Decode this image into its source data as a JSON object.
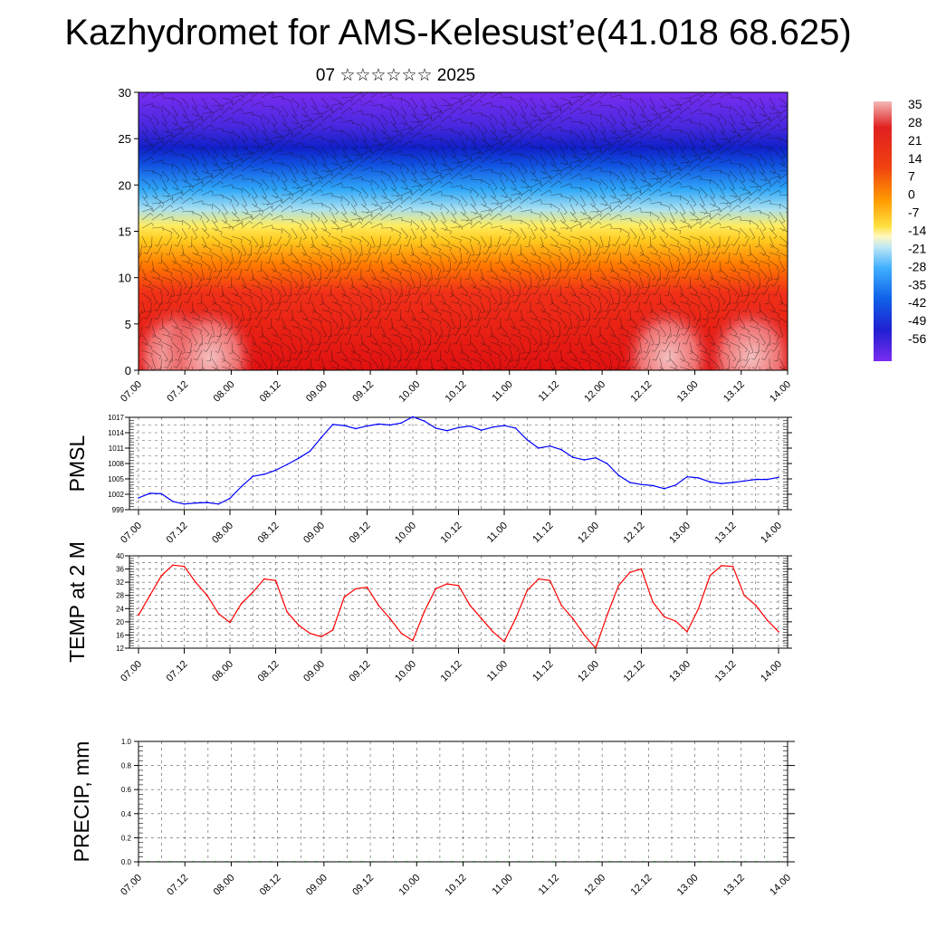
{
  "title": "Kazhydromet for AMS-Kelesust’e(41.018 68.625)",
  "subtitle": "07 ☆☆☆☆☆☆ 2025",
  "chart_data": [
    {
      "type": "heatmap",
      "name": "temperature-cross-section",
      "x_tick_labels": [
        "07.00",
        "07.12",
        "08.00",
        "08.12",
        "09.00",
        "09.12",
        "10.00",
        "10.12",
        "11.00",
        "11.12",
        "12.00",
        "12.12",
        "13.00",
        "13.12",
        "14.00"
      ],
      "y_ticks": [
        0,
        5,
        10,
        15,
        20,
        25,
        30
      ],
      "ylim": [
        0,
        30
      ],
      "colorbar_labels": [
        "35",
        "28",
        "21",
        "14",
        "7",
        "0",
        "-7",
        "-14",
        "-21",
        "-28",
        "-35",
        "-42",
        "-49",
        "-56"
      ],
      "colors": {
        "warm": "#e01010",
        "hot_core": "#f0a0a0",
        "mid": "#ff9a00",
        "neutral": "#ffe040",
        "cool": "#40b0ff",
        "cold": "#1020d0",
        "coldest": "#7a2cf0"
      },
      "overlay": "wind barbs"
    },
    {
      "type": "line",
      "name": "pmsl",
      "ylabel": "PMSL",
      "x_tick_labels": [
        "07.00",
        "07.12",
        "08.00",
        "08.12",
        "09.00",
        "09.12",
        "10.00",
        "10.12",
        "11.00",
        "11.12",
        "12.00",
        "12.12",
        "13.00",
        "13.12",
        "14.00"
      ],
      "y_ticks": [
        999,
        1002,
        1005,
        1008,
        1011,
        1014,
        1017
      ],
      "ylim": [
        999,
        1017
      ],
      "grid": true,
      "color": "#0000ff",
      "x": [
        0,
        3,
        6,
        9,
        12,
        15,
        18,
        21,
        24,
        27,
        30,
        33,
        36,
        39,
        42,
        45,
        48,
        51,
        54,
        57,
        60,
        63,
        66,
        69,
        72,
        75,
        78,
        81,
        84,
        87,
        90,
        93,
        96,
        99,
        102,
        105,
        108,
        111,
        114,
        117,
        120,
        123,
        126,
        129,
        132,
        135,
        138,
        141,
        144,
        147,
        150,
        153,
        156,
        159,
        162,
        165,
        168
      ],
      "values": [
        1001.3,
        1002.2,
        1002.1,
        1000.6,
        1000.1,
        1000.3,
        1000.4,
        1000.1,
        1001.2,
        1003.5,
        1005.5,
        1005.9,
        1006.7,
        1007.8,
        1009.0,
        1010.4,
        1013.1,
        1015.6,
        1015.4,
        1014.8,
        1015.3,
        1015.7,
        1015.5,
        1015.9,
        1017.1,
        1016.3,
        1014.9,
        1014.4,
        1015.0,
        1015.3,
        1014.5,
        1015.1,
        1015.4,
        1014.9,
        1012.6,
        1011.0,
        1011.4,
        1010.7,
        1009.2,
        1008.7,
        1009.1,
        1008.0,
        1005.7,
        1004.3,
        1003.9,
        1003.7,
        1003.1,
        1003.8,
        1005.4,
        1005.2,
        1004.4,
        1004.1,
        1004.3,
        1004.6,
        1004.9,
        1004.9,
        1005.3
      ]
    },
    {
      "type": "line",
      "name": "temp-2m",
      "ylabel": "TEMP at 2 M",
      "x_tick_labels": [
        "07.00",
        "07.12",
        "08.00",
        "08.12",
        "09.00",
        "09.12",
        "10.00",
        "10.12",
        "11.00",
        "11.12",
        "12.00",
        "12.12",
        "13.00",
        "13.12",
        "14.00"
      ],
      "y_ticks": [
        12,
        16,
        20,
        24,
        28,
        32,
        36,
        40
      ],
      "ylim": [
        12,
        40
      ],
      "grid": true,
      "color": "#ff0000",
      "x": [
        0,
        3,
        6,
        9,
        12,
        15,
        18,
        21,
        24,
        27,
        30,
        33,
        36,
        39,
        42,
        45,
        48,
        51,
        54,
        57,
        60,
        63,
        66,
        69,
        72,
        75,
        78,
        81,
        84,
        87,
        90,
        93,
        96,
        99,
        102,
        105,
        108,
        111,
        114,
        117,
        120,
        123,
        126,
        129,
        132,
        135,
        138,
        141,
        144,
        147,
        150,
        153,
        156,
        159,
        162,
        165,
        168
      ],
      "values": [
        22,
        28,
        34,
        37.2,
        36.8,
        32,
        28,
        22.5,
        19.8,
        25.5,
        29,
        33,
        32.5,
        23,
        19,
        16.5,
        15.5,
        17.5,
        27.5,
        30,
        30.5,
        25,
        21,
        16.5,
        14.3,
        23,
        30,
        31.5,
        31,
        25,
        21,
        17,
        14,
        21,
        29.5,
        33,
        32.5,
        25,
        21,
        16,
        12,
        22,
        31,
        35,
        36,
        26,
        21.5,
        20.2,
        17,
        24,
        34,
        37,
        36.8,
        28,
        25,
        20.5,
        17
      ]
    },
    {
      "type": "bar",
      "name": "precip",
      "ylabel": "PRECIP, mm",
      "x_tick_labels": [
        "07.00",
        "07.12",
        "08.00",
        "08.12",
        "09.00",
        "09.12",
        "10.00",
        "10.12",
        "11.00",
        "11.12",
        "12.00",
        "12.12",
        "13.00",
        "13.12",
        "14.00"
      ],
      "y_tick_labels": [
        "0.0",
        "0.2",
        "0.4",
        "0.6",
        "0.8",
        "1.0"
      ],
      "ylim": [
        0,
        1.0
      ],
      "grid": true,
      "values": [
        0,
        0,
        0,
        0,
        0,
        0,
        0,
        0,
        0,
        0,
        0,
        0,
        0,
        0,
        0,
        0,
        0,
        0,
        0,
        0,
        0,
        0,
        0,
        0,
        0,
        0,
        0,
        0,
        0,
        0,
        0,
        0,
        0,
        0,
        0,
        0,
        0,
        0,
        0,
        0,
        0,
        0,
        0,
        0,
        0,
        0,
        0,
        0,
        0,
        0,
        0,
        0,
        0,
        0,
        0,
        0,
        0
      ]
    }
  ]
}
